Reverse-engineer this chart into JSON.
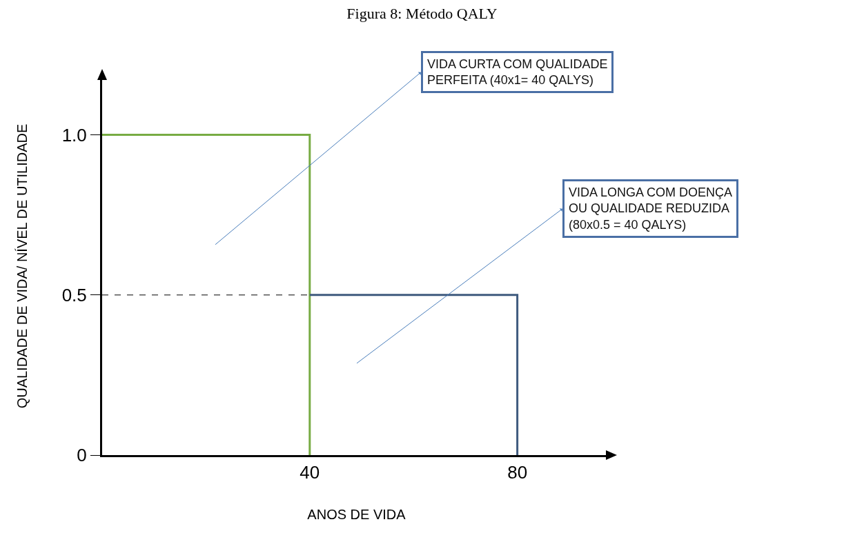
{
  "chart_data": {
    "type": "line",
    "title": "Figura 8: Método QALY",
    "xlabel": "ANOS DE VIDA",
    "ylabel": "QUALIDADE DE VIDA/ NÍVEL DE UTILIDADE",
    "series": [
      {
        "color": "#77ab43",
        "x": [
          0,
          40,
          40
        ],
        "values": [
          1,
          1,
          0
        ]
      },
      {
        "color": "#3e5a7e",
        "x": [
          40,
          80,
          80
        ],
        "values": [
          0.5,
          0.5,
          0
        ]
      },
      {
        "color": "#000000",
        "x": [
          0,
          40
        ],
        "values": [
          0.5,
          0.5
        ],
        "line_style": "dashed"
      }
    ],
    "xlim": [
      0,
      98
    ],
    "ylim": [
      0,
      1.18
    ],
    "xticks": [
      40,
      80
    ],
    "yticks": [
      0,
      0.5,
      {
        "value": 1,
        "label": "1.0"
      }
    ],
    "annotations": [
      "VIDA CURTA COM QUALIDADE\nPERFEITA (40x1= 40 QALYS)",
      "VIDA LONGA COM DOENÇA\nOU QUALIDADE REDUZIDA\n(80x0.5 = 40 QALYS)"
    ],
    "grid": false,
    "marker": "none",
    "line_style": "solid"
  }
}
